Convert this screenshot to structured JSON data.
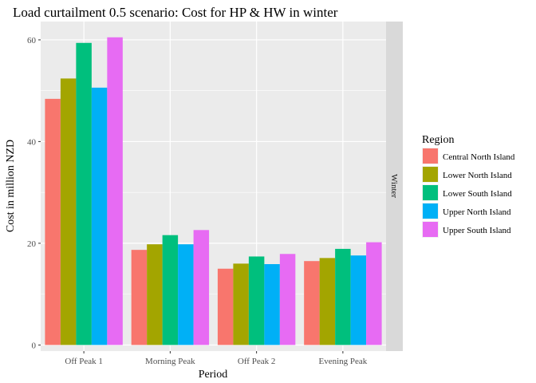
{
  "chart_data": {
    "type": "bar",
    "title": "Load curtailment 0.5 scenario: Cost for HP & HW in winter",
    "xlabel": "Period",
    "ylabel": "Cost in million NZD",
    "facet_label": "Winter",
    "legend_title": "Region",
    "legend_position": "right",
    "grid": true,
    "ylim": [
      -1.2,
      63.6
    ],
    "yticks": [
      0,
      20,
      40,
      60
    ],
    "categories": [
      "Off Peak 1",
      "Morning Peak",
      "Off Peak 2",
      "Evening Peak"
    ],
    "series": [
      {
        "name": "Central North Island",
        "color": "#F8766D",
        "values": [
          48.4,
          18.7,
          15.0,
          16.5
        ]
      },
      {
        "name": "Lower North Island",
        "color": "#A3A500",
        "values": [
          52.4,
          19.8,
          16.0,
          17.1
        ]
      },
      {
        "name": "Lower South Island",
        "color": "#00BF7D",
        "values": [
          59.4,
          21.6,
          17.4,
          18.9
        ]
      },
      {
        "name": "Upper North Island",
        "color": "#00B0F6",
        "values": [
          50.6,
          19.8,
          15.9,
          17.6
        ]
      },
      {
        "name": "Upper South Island",
        "color": "#E76BF3",
        "values": [
          60.5,
          22.6,
          17.9,
          20.2
        ]
      }
    ]
  }
}
